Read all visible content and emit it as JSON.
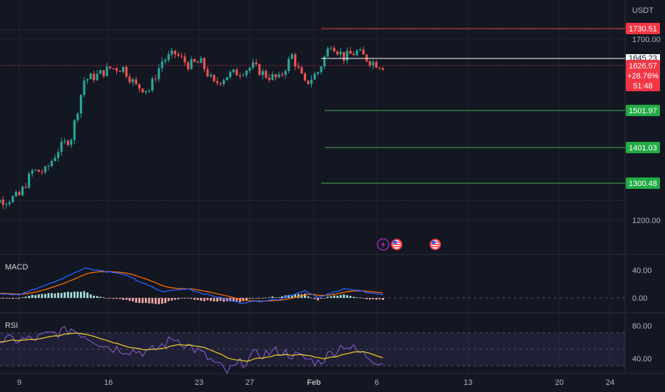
{
  "currency": "USDT",
  "colors": {
    "bg": "#131722",
    "up": "#26a69a",
    "down": "#ef5350",
    "grid": "#1e222d",
    "text": "#b2b5be",
    "red_label": "#f23645",
    "green_label": "#22ab45",
    "green_line": "#4caf50",
    "macd_line": "#2962ff",
    "signal_line": "#ff6d00",
    "rsi_line": "#7e57c2",
    "rsi_ma": "#e9c52a"
  },
  "price_levels": [
    {
      "label": "1730.51",
      "kind": "resistance"
    },
    {
      "label": "1501.97",
      "kind": "target"
    },
    {
      "label": "1401.03",
      "kind": "target"
    },
    {
      "label": "1300.48",
      "kind": "target"
    }
  ],
  "current_price": {
    "price": "1626.57",
    "change": "+28.76%",
    "countdown": "51:48",
    "prev_line_label": "1645.23"
  },
  "y_axis_labels": [
    "1700.00",
    "1200.00"
  ],
  "macd": {
    "title": "MACD",
    "labels": [
      "40.00",
      "0.00"
    ]
  },
  "rsi": {
    "title": "RSI",
    "labels": [
      "80.00",
      "40.00"
    ]
  },
  "x_axis": {
    "labels": [
      "9",
      "16",
      "23",
      "27",
      "Feb",
      "6",
      "13",
      "20",
      "24"
    ]
  },
  "event_icons": [
    "lightning-icon",
    "us-flag-icon",
    "us-flag-icon"
  ],
  "chart_data": {
    "type": "candlestick",
    "y_axis": {
      "range": [
        1145,
        1790
      ],
      "ticks": [
        1200,
        1700
      ]
    },
    "x_range_days": "Jan 6 – Feb 26",
    "close_path": [
      {
        "x": "Jan 8",
        "y": 1255
      },
      {
        "x": "Jan 9",
        "y": 1268
      },
      {
        "x": "Jan 10",
        "y": 1335
      },
      {
        "x": "Jan 11",
        "y": 1335
      },
      {
        "x": "Jan 12",
        "y": 1395
      },
      {
        "x": "Jan 13",
        "y": 1430
      },
      {
        "x": "Jan 14",
        "y": 1587
      },
      {
        "x": "Jan 15",
        "y": 1600
      },
      {
        "x": "Jan 16",
        "y": 1620
      },
      {
        "x": "Jan 17",
        "y": 1620
      },
      {
        "x": "Jan 18",
        "y": 1570
      },
      {
        "x": "Jan 19",
        "y": 1560
      },
      {
        "x": "Jan 20",
        "y": 1640
      },
      {
        "x": "Jan 21",
        "y": 1660
      },
      {
        "x": "Jan 22",
        "y": 1630
      },
      {
        "x": "Jan 23",
        "y": 1635
      },
      {
        "x": "Jan 24",
        "y": 1575
      },
      {
        "x": "Jan 25",
        "y": 1600
      },
      {
        "x": "Jan 26",
        "y": 1610
      },
      {
        "x": "Jan 27",
        "y": 1625
      },
      {
        "x": "Jan 28",
        "y": 1600
      },
      {
        "x": "Jan 29",
        "y": 1590
      },
      {
        "x": "Jan 30",
        "y": 1655
      },
      {
        "x": "Jan 31",
        "y": 1575
      },
      {
        "x": "Feb 1",
        "y": 1610
      },
      {
        "x": "Feb 2",
        "y": 1690
      },
      {
        "x": "Feb 3",
        "y": 1650
      },
      {
        "x": "Feb 4",
        "y": 1665
      },
      {
        "x": "Feb 5",
        "y": 1640
      },
      {
        "x": "Feb 6",
        "y": 1626
      }
    ],
    "macd_path": [
      {
        "x": "Jan 6",
        "y": 8
      },
      {
        "x": "Jan 9",
        "y": 5
      },
      {
        "x": "Jan 12",
        "y": 28
      },
      {
        "x": "Jan 14",
        "y": 48
      },
      {
        "x": "Jan 17",
        "y": 38
      },
      {
        "x": "Jan 20",
        "y": 10
      },
      {
        "x": "Jan 22",
        "y": 15
      },
      {
        "x": "Jan 23",
        "y": 8
      },
      {
        "x": "Jan 26",
        "y": -8
      },
      {
        "x": "Jan 29",
        "y": -2
      },
      {
        "x": "Jan 31",
        "y": 12
      },
      {
        "x": "Feb 1",
        "y": 0
      },
      {
        "x": "Feb 3",
        "y": 15
      },
      {
        "x": "Feb 6",
        "y": 5
      }
    ],
    "rsi_path": [
      {
        "x": "Jan 6",
        "y": 70
      },
      {
        "x": "Jan 10",
        "y": 72
      },
      {
        "x": "Jan 13",
        "y": 85
      },
      {
        "x": "Jan 16",
        "y": 62
      },
      {
        "x": "Jan 19",
        "y": 56
      },
      {
        "x": "Jan 21",
        "y": 74
      },
      {
        "x": "Jan 23",
        "y": 55
      },
      {
        "x": "Jan 25",
        "y": 32
      },
      {
        "x": "Jan 27",
        "y": 52
      },
      {
        "x": "Jan 29",
        "y": 58
      },
      {
        "x": "Feb 1",
        "y": 44
      },
      {
        "x": "Feb 3",
        "y": 66
      },
      {
        "x": "Feb 5",
        "y": 50
      },
      {
        "x": "Feb 6",
        "y": 44
      }
    ]
  }
}
